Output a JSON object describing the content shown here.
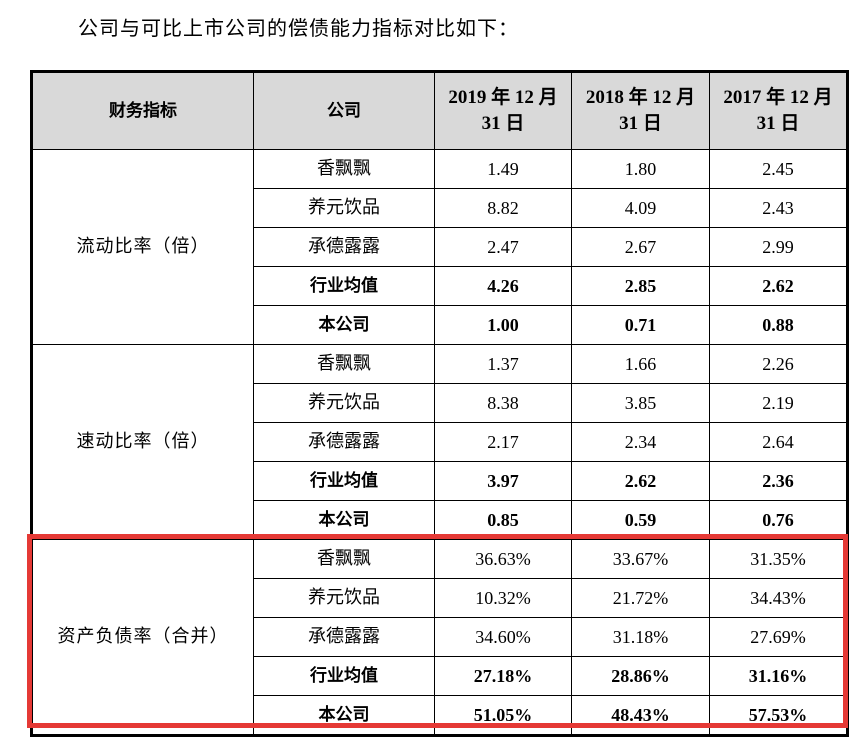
{
  "intro_text": "公司与可比上市公司的偿债能力指标对比如下：",
  "headers": {
    "metric": "财务指标",
    "company": "公司",
    "years": [
      {
        "line1": "2019 年 12 月",
        "line2": "31 日"
      },
      {
        "line1": "2018 年 12 月",
        "line2": "31 日"
      },
      {
        "line1": "2017 年 12 月",
        "line2": "31 日"
      }
    ]
  },
  "groups": [
    {
      "metric": "流动比率（倍）",
      "rows": [
        {
          "company": "香飘飘",
          "values": [
            "1.49",
            "1.80",
            "2.45"
          ],
          "bold": false
        },
        {
          "company": "养元饮品",
          "values": [
            "8.82",
            "4.09",
            "2.43"
          ],
          "bold": false
        },
        {
          "company": "承德露露",
          "values": [
            "2.47",
            "2.67",
            "2.99"
          ],
          "bold": false
        },
        {
          "company": "行业均值",
          "values": [
            "4.26",
            "2.85",
            "2.62"
          ],
          "bold": true
        },
        {
          "company": "本公司",
          "values": [
            "1.00",
            "0.71",
            "0.88"
          ],
          "bold": true
        }
      ]
    },
    {
      "metric": "速动比率（倍）",
      "rows": [
        {
          "company": "香飘飘",
          "values": [
            "1.37",
            "1.66",
            "2.26"
          ],
          "bold": false
        },
        {
          "company": "养元饮品",
          "values": [
            "8.38",
            "3.85",
            "2.19"
          ],
          "bold": false
        },
        {
          "company": "承德露露",
          "values": [
            "2.17",
            "2.34",
            "2.64"
          ],
          "bold": false
        },
        {
          "company": "行业均值",
          "values": [
            "3.97",
            "2.62",
            "2.36"
          ],
          "bold": true
        },
        {
          "company": "本公司",
          "values": [
            "0.85",
            "0.59",
            "0.76"
          ],
          "bold": true
        }
      ]
    },
    {
      "metric": "资产负债率（合并）",
      "rows": [
        {
          "company": "香飘飘",
          "values": [
            "36.63%",
            "33.67%",
            "31.35%"
          ],
          "bold": false
        },
        {
          "company": "养元饮品",
          "values": [
            "10.32%",
            "21.72%",
            "34.43%"
          ],
          "bold": false
        },
        {
          "company": "承德露露",
          "values": [
            "34.60%",
            "31.18%",
            "27.69%"
          ],
          "bold": false
        },
        {
          "company": "行业均值",
          "values": [
            "27.18%",
            "28.86%",
            "31.16%"
          ],
          "bold": true
        },
        {
          "company": "本公司",
          "values": [
            "51.05%",
            "48.43%",
            "57.53%"
          ],
          "bold": true
        }
      ]
    }
  ],
  "highlight_color": "#e53935",
  "header_bg": "#d9d9d9"
}
